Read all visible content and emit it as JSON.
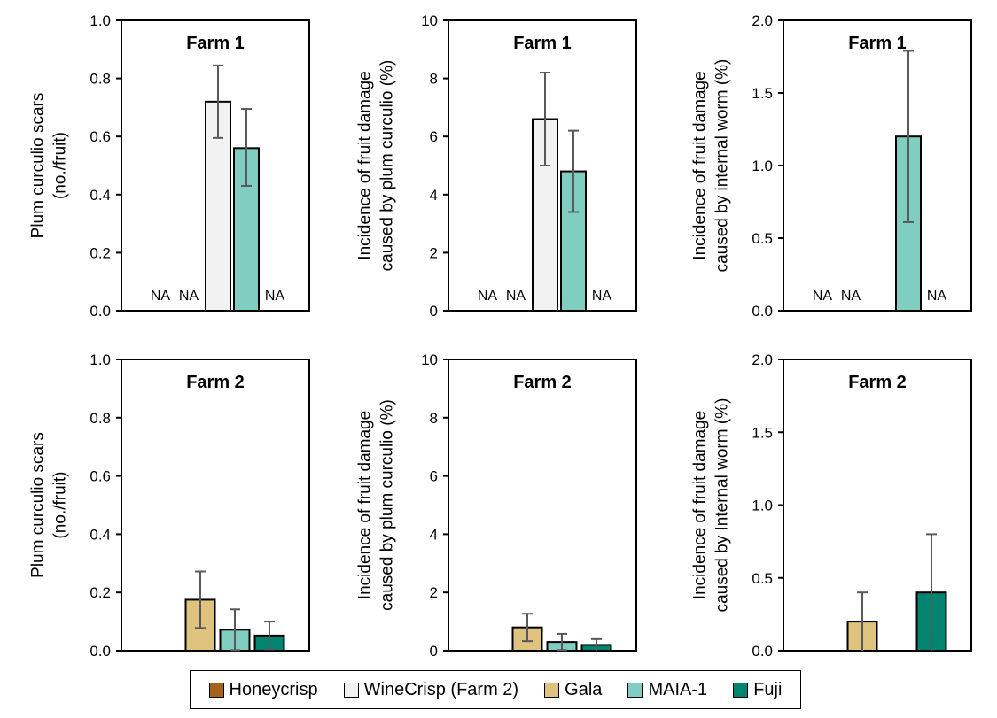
{
  "chart_data": [
    {
      "type": "bar",
      "title": "Farm 1",
      "ylabel": [
        "Plum curculio scars",
        "(no./fruit)"
      ],
      "ylim": [
        0,
        1.0
      ],
      "yticks": [
        "0.0",
        "0.2",
        "0.4",
        "0.6",
        "0.8",
        "1.0"
      ],
      "categories": [
        "Honeycrisp",
        "Gala",
        "WineCrisp (Farm 2)",
        "MAIA-1",
        "Fuji"
      ],
      "values": [
        null,
        null,
        0.72,
        0.56,
        null
      ],
      "err_low": [
        null,
        null,
        0.595,
        0.43,
        null
      ],
      "err_high": [
        null,
        null,
        0.845,
        0.695,
        null
      ],
      "labels": [
        "NA",
        "NA",
        "",
        "",
        "NA"
      ]
    },
    {
      "type": "bar",
      "title": "Farm 1",
      "ylabel": [
        "Incidence of fruit damage",
        "caused by plum curculio (%)"
      ],
      "ylim": [
        0,
        10
      ],
      "yticks": [
        "0",
        "2",
        "4",
        "6",
        "8",
        "10"
      ],
      "categories": [
        "Honeycrisp",
        "Gala",
        "WineCrisp (Farm 2)",
        "MAIA-1",
        "Fuji"
      ],
      "values": [
        null,
        null,
        6.6,
        4.8,
        null
      ],
      "err_low": [
        null,
        null,
        5.0,
        3.4,
        null
      ],
      "err_high": [
        null,
        null,
        8.2,
        6.2,
        null
      ],
      "labels": [
        "NA",
        "NA",
        "",
        "",
        "NA"
      ]
    },
    {
      "type": "bar",
      "title": "Farm 1",
      "ylabel": [
        "Incidence of fruit damage",
        "caused by internal worm (%)"
      ],
      "ylim": [
        0,
        2.0
      ],
      "yticks": [
        "0.0",
        "0.5",
        "1.0",
        "1.5",
        "2.0"
      ],
      "categories": [
        "Honeycrisp",
        "Gala",
        "WineCrisp (Farm 2)",
        "MAIA-1",
        "Fuji"
      ],
      "values": [
        null,
        null,
        null,
        1.2,
        null
      ],
      "err_low": [
        null,
        null,
        null,
        0.61,
        null
      ],
      "err_high": [
        null,
        null,
        null,
        1.79,
        null
      ],
      "labels": [
        "NA",
        "NA",
        "",
        "",
        "NA"
      ]
    },
    {
      "type": "bar",
      "title": "Farm 2",
      "ylabel": [
        "Plum curculio scars",
        "(no./fruit)"
      ],
      "ylim": [
        0,
        1.0
      ],
      "yticks": [
        "0.0",
        "0.2",
        "0.4",
        "0.6",
        "0.8",
        "1.0"
      ],
      "categories": [
        "Honeycrisp",
        "WineCrisp (Farm 2)",
        "Gala",
        "MAIA-1",
        "Fuji"
      ],
      "values": [
        null,
        null,
        0.175,
        0.072,
        0.052
      ],
      "err_low": [
        null,
        null,
        0.078,
        0.002,
        0.005
      ],
      "err_high": [
        null,
        null,
        0.272,
        0.142,
        0.1
      ],
      "labels": [
        "",
        "",
        "",
        "",
        ""
      ]
    },
    {
      "type": "bar",
      "title": "Farm 2",
      "ylabel": [
        "Incidence of fruit damage",
        "caused by plum curculio (%)"
      ],
      "ylim": [
        0,
        10
      ],
      "yticks": [
        "0",
        "2",
        "4",
        "6",
        "8",
        "10"
      ],
      "categories": [
        "Honeycrisp",
        "WineCrisp (Farm 2)",
        "Gala",
        "MAIA-1",
        "Fuji"
      ],
      "values": [
        null,
        null,
        0.8,
        0.3,
        0.2
      ],
      "err_low": [
        null,
        null,
        0.33,
        0.02,
        0.0
      ],
      "err_high": [
        null,
        null,
        1.27,
        0.58,
        0.4
      ],
      "labels": [
        "",
        "",
        "",
        "",
        ""
      ]
    },
    {
      "type": "bar",
      "title": "Farm 2",
      "ylabel": [
        "Incidence of fruit damage",
        "caused by Internal worm (%)"
      ],
      "ylim": [
        0,
        2.0
      ],
      "yticks": [
        "0.0",
        "0.5",
        "1.0",
        "1.5",
        "2.0"
      ],
      "categories": [
        "Honeycrisp",
        "WineCrisp (Farm 2)",
        "Gala",
        "MAIA-1",
        "Fuji"
      ],
      "values": [
        null,
        null,
        0.2,
        null,
        0.4
      ],
      "err_low": [
        null,
        null,
        0.0,
        null,
        0.0
      ],
      "err_high": [
        null,
        null,
        0.4,
        null,
        0.8
      ],
      "labels": [
        "",
        "",
        "",
        "",
        ""
      ]
    }
  ],
  "legend": {
    "placement": "bottom",
    "items": [
      {
        "label": "Honeycrisp",
        "color": "#A6611A"
      },
      {
        "label": "WineCrisp (Farm 2)",
        "color": "#F2F2F2"
      },
      {
        "label": "Gala",
        "color": "#DFC27D"
      },
      {
        "label": "MAIA-1",
        "color": "#80CDC1"
      },
      {
        "label": "Fuji",
        "color": "#018571"
      }
    ]
  },
  "error_bar_color": "#595959"
}
